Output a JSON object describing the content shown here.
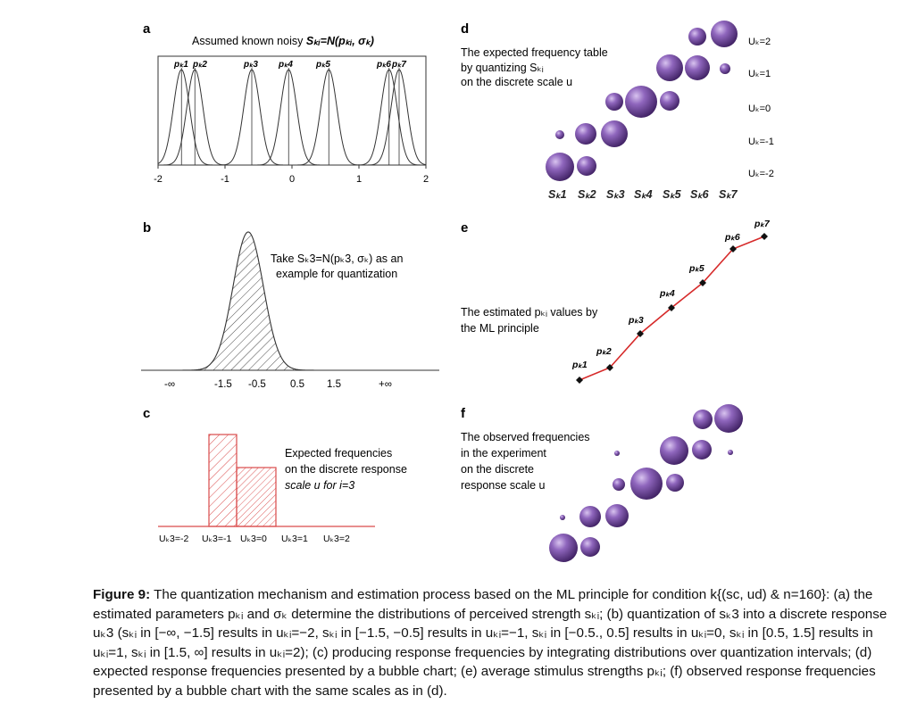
{
  "panels": {
    "a": {
      "letter": "a",
      "title_prefix": "Assumed known noisy ",
      "title_formula": "Sₖᵢ=N(pₖᵢ, σₖ)",
      "peak_labels": [
        "pₖ1",
        "pₖ2",
        "pₖ3",
        "pₖ4",
        "pₖ5",
        "pₖ6",
        "pₖ7"
      ],
      "peak_means": [
        -1.65,
        -1.45,
        -0.6,
        -0.05,
        0.55,
        1.45,
        1.6
      ],
      "sigma": 0.12,
      "x_ticks": [
        "-2",
        "-1",
        "0",
        "1",
        "2"
      ],
      "x_tick_values": [
        -2,
        -1,
        0,
        1,
        2
      ]
    },
    "b": {
      "letter": "b",
      "note_line1": "Take Sₖ3=N(pₖ3, σₖ) as an",
      "note_line2": "example for quantization",
      "axis_labels": [
        "-∞",
        "-1.5",
        "-0.5",
        "0.5",
        "1.5",
        "+∞"
      ]
    },
    "c": {
      "letter": "c",
      "note_line1": "Expected frequencies",
      "note_line2": "on the discrete response",
      "note_line3": "scale u for i=3",
      "categories": [
        "Uₖ3=-2",
        "Uₖ3=-1",
        "Uₖ3=0",
        "Uₖ3=1",
        "Uₖ3=2"
      ],
      "values": [
        0,
        0.89,
        0.57,
        0,
        0
      ]
    },
    "d": {
      "letter": "d",
      "note_line1": "The expected frequency table",
      "note_line2": "by quantizing Sₖᵢ",
      "note_line3": "on the discrete scale u",
      "row_labels": [
        "Uₖ=2",
        "Uₖ=1",
        "Uₖ=0",
        "Uₖ=-1",
        "Uₖ=-2"
      ],
      "col_labels": [
        "Sₖ1",
        "Sₖ2",
        "Sₖ3",
        "Sₖ4",
        "Sₖ5",
        "Sₖ6",
        "Sₖ7"
      ]
    },
    "e": {
      "letter": "e",
      "note_line1": "The estimated pₖᵢ values by",
      "note_line2": "the ML principle",
      "point_labels": [
        "pₖ1",
        "pₖ2",
        "pₖ3",
        "pₖ4",
        "pₖ5",
        "pₖ6",
        "pₖ7"
      ]
    },
    "f": {
      "letter": "f",
      "note_line1": "The observed frequencies",
      "note_line2": "in the experiment",
      "note_line3": "on the discrete",
      "note_line4": "response scale u"
    }
  },
  "colors": {
    "bubble": "#7a52a8",
    "bubble_light": "#b99ad9",
    "bubble_dark": "#3e2160",
    "line_red": "#d62a2a",
    "hatch_red": "#d94a4a"
  },
  "caption": {
    "lead": "Figure 9:",
    "text": "The quantization mechanism and estimation process based on the ML principle for condition k{(sc, ud) & n=160}: (a) the estimated parameters pₖᵢ and σₖ determine the distributions of perceived strength sₖᵢ; (b) quantization of sₖ3 into a discrete response uₖ3 (sₖᵢ in [−∞, −1.5] results in uₖᵢ=−2, sₖᵢ in [−1.5, −0.5] results in uₖᵢ=−1, sₖᵢ in [−0.5., 0.5] results in uₖᵢ=0, sₖᵢ in [0.5, 1.5] results in uₖᵢ=1, sₖᵢ in [1.5, ∞] results in uₖᵢ=2); (c) producing response frequencies by integrating distributions over quantization intervals; (d) expected response frequencies presented by a bubble chart; (e) average stimulus strengths pₖᵢ; (f) observed response frequencies presented by a bubble chart with the same scales as in (d)."
  }
}
